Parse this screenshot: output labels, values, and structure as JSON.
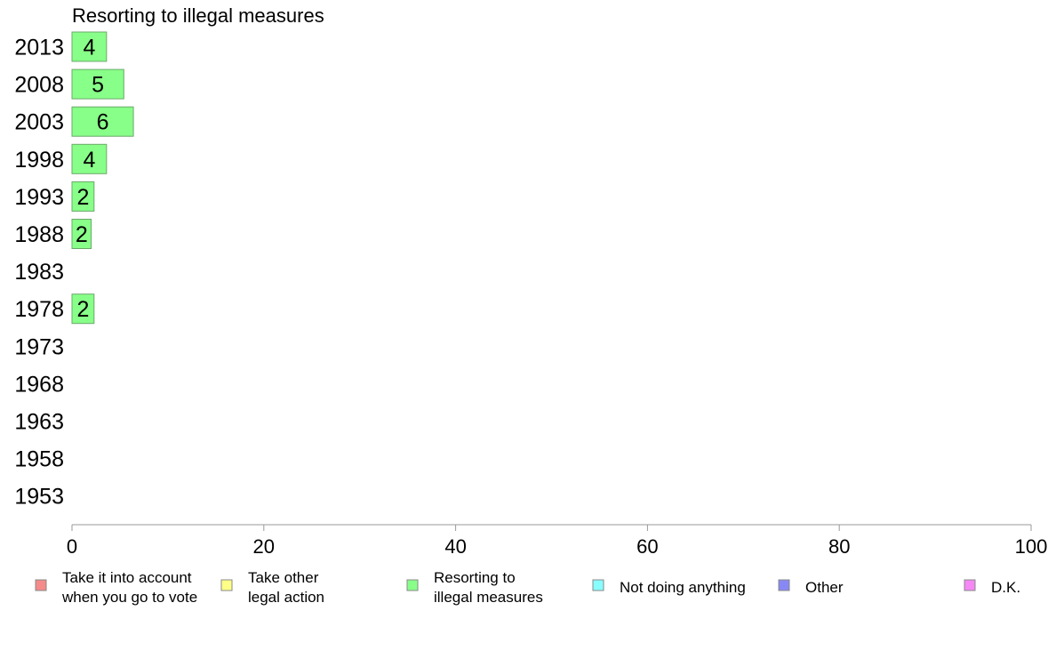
{
  "chart_data": {
    "type": "bar",
    "orientation": "horizontal",
    "title": "Resorting to illegal measures",
    "xlabel": "",
    "ylabel": "",
    "xlim": [
      0,
      100
    ],
    "x_ticks": [
      0,
      20,
      40,
      60,
      80,
      100
    ],
    "grid": false,
    "categories": [
      "2013",
      "2008",
      "2003",
      "1998",
      "1993",
      "1988",
      "1983",
      "1978",
      "1973",
      "1968",
      "1963",
      "1958",
      "1953"
    ],
    "series": [
      {
        "name": "Resorting to illegal measures",
        "color": "#88ff88",
        "values": [
          3.6,
          5.4,
          6.4,
          3.6,
          2.3,
          2.0,
          null,
          2.3,
          null,
          null,
          null,
          null,
          null
        ],
        "labels": [
          "4",
          "5",
          "6",
          "4",
          "2",
          "2",
          "",
          "2",
          "",
          "",
          "",
          "",
          ""
        ]
      }
    ],
    "legend": {
      "placement": "bottom",
      "items": [
        {
          "lines": [
            "Take it into account",
            "when you go to vote"
          ],
          "color": "#f58a8a"
        },
        {
          "lines": [
            "Take other",
            "legal action"
          ],
          "color": "#ffff88"
        },
        {
          "lines": [
            "Resorting to",
            "illegal measures"
          ],
          "color": "#88ff88"
        },
        {
          "lines": [
            "Not doing anything"
          ],
          "color": "#88ffff"
        },
        {
          "lines": [
            "Other"
          ],
          "color": "#8888f5"
        },
        {
          "lines": [
            "D.K."
          ],
          "color": "#f588f5"
        }
      ]
    }
  }
}
